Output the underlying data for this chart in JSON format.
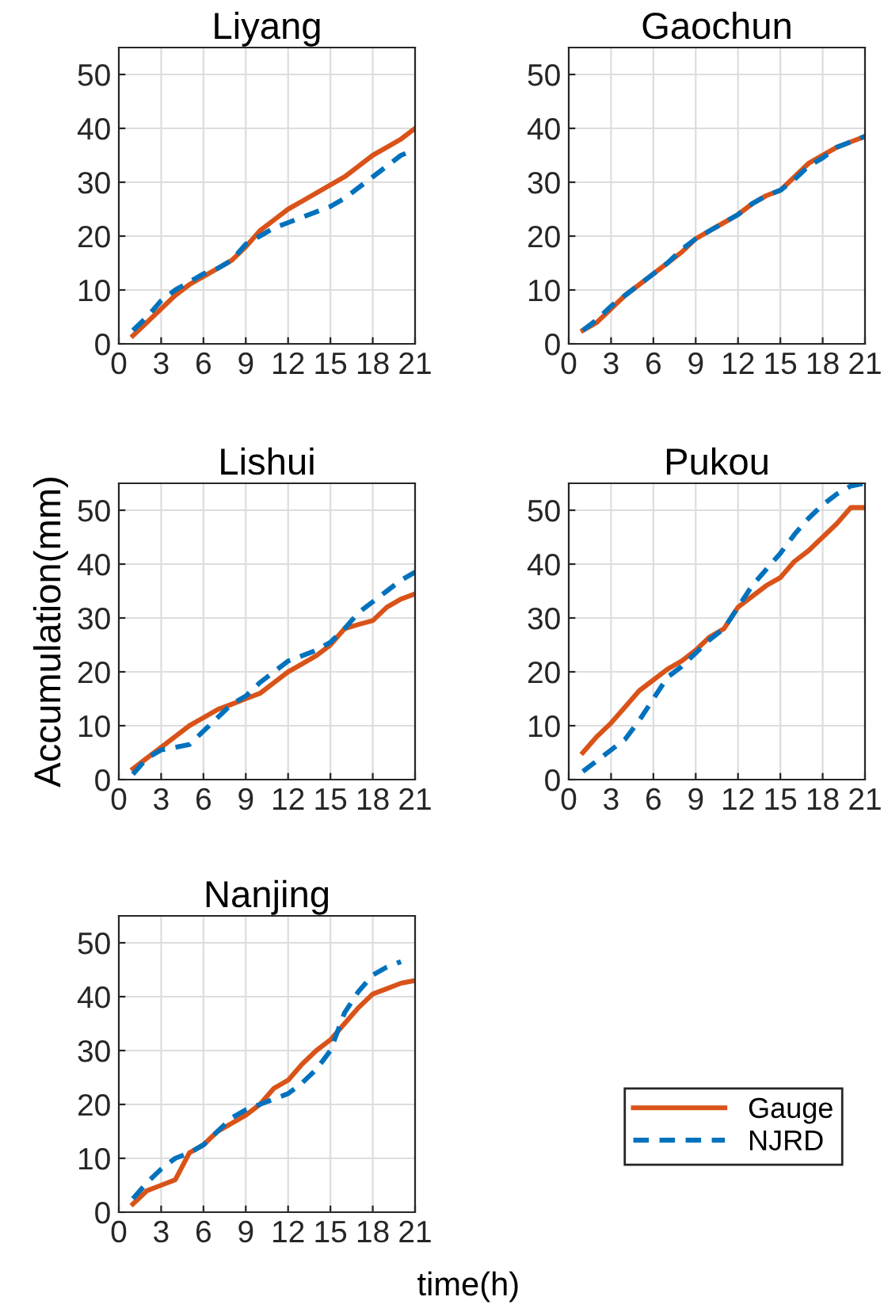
{
  "chart_data": [
    {
      "type": "line",
      "title": "Liyang",
      "legend": "bottom right",
      "x": [
        1,
        2,
        3,
        4,
        5,
        6,
        7,
        8,
        9,
        10,
        11,
        12,
        13,
        14,
        15,
        16,
        17,
        18,
        19,
        20,
        21
      ],
      "xlim": [
        0,
        21
      ],
      "ylim": [
        0,
        55
      ],
      "xticks": [
        0,
        3,
        6,
        9,
        12,
        15,
        18,
        21
      ],
      "yticks": [
        0,
        10,
        20,
        30,
        40,
        50
      ],
      "grid": true,
      "series": [
        {
          "name": "Gauge",
          "color": "#d95319",
          "line_style": "solid",
          "values": [
            1.5,
            4,
            6.5,
            9,
            11,
            12.5,
            14,
            15.5,
            18,
            21,
            23,
            25,
            26.5,
            28,
            29.5,
            31,
            33,
            35,
            36.5,
            38,
            40
          ]
        },
        {
          "name": "NJRD",
          "color": "#0072bd",
          "line_style": "dashed",
          "values": [
            2.5,
            5,
            8,
            10,
            11.5,
            13,
            14,
            15.5,
            18.5,
            20,
            21.5,
            22.5,
            23.5,
            24.5,
            25.5,
            27,
            29,
            31,
            33,
            35,
            36
          ]
        }
      ]
    },
    {
      "type": "line",
      "title": "Gaochun",
      "x": [
        1,
        2,
        3,
        4,
        5,
        6,
        7,
        8,
        9,
        10,
        11,
        12,
        13,
        14,
        15,
        16,
        17,
        18,
        19,
        20,
        21
      ],
      "xlim": [
        0,
        21
      ],
      "ylim": [
        0,
        55
      ],
      "xticks": [
        0,
        3,
        6,
        9,
        12,
        15,
        18,
        21
      ],
      "yticks": [
        0,
        10,
        20,
        30,
        40,
        50
      ],
      "grid": true,
      "series": [
        {
          "color": "#d95319",
          "line_style": "solid",
          "values": [
            2.5,
            4,
            6.5,
            9,
            11,
            13,
            15,
            17,
            19.5,
            21,
            22.5,
            24,
            26,
            27.5,
            28.5,
            31,
            33.5,
            35,
            36.5,
            37.5,
            38.5
          ]
        },
        {
          "color": "#0072bd",
          "line_style": "dashed",
          "values": [
            2.5,
            4.5,
            7,
            9,
            11,
            13,
            15,
            17.5,
            19.5,
            21,
            22.5,
            24,
            26,
            27.5,
            28.5,
            30.5,
            33,
            34.5,
            36.5,
            37.5,
            38.5
          ]
        }
      ]
    },
    {
      "type": "line",
      "title": "Lishui",
      "ylabel": "Accumulation(mm)",
      "x": [
        1,
        2,
        3,
        4,
        5,
        6,
        7,
        8,
        9,
        10,
        11,
        12,
        13,
        14,
        15,
        16,
        17,
        18,
        19,
        20,
        21
      ],
      "xlim": [
        0,
        21
      ],
      "ylim": [
        0,
        55
      ],
      "xticks": [
        0,
        3,
        6,
        9,
        12,
        15,
        18,
        21
      ],
      "yticks": [
        0,
        10,
        20,
        30,
        40,
        50
      ],
      "grid": true,
      "series": [
        {
          "color": "#d95319",
          "line_style": "solid",
          "values": [
            2,
            4,
            6,
            8,
            10,
            11.5,
            13,
            14,
            15,
            16,
            18,
            20,
            21.5,
            23,
            25,
            28,
            28.8,
            29.5,
            32,
            33.5,
            34.5
          ]
        },
        {
          "color": "#0072bd",
          "line_style": "dashed",
          "values": [
            1,
            4,
            5.5,
            6,
            6.5,
            9,
            11.5,
            14,
            15.5,
            18,
            20,
            22,
            23,
            24,
            25.5,
            28,
            31,
            33,
            35,
            37,
            38.5
          ]
        }
      ]
    },
    {
      "type": "line",
      "title": "Pukou",
      "x": [
        1,
        2,
        3,
        4,
        5,
        6,
        7,
        8,
        9,
        10,
        11,
        12,
        13,
        14,
        15,
        16,
        17,
        18,
        19,
        20,
        21
      ],
      "xlim": [
        0,
        21
      ],
      "ylim": [
        0,
        55
      ],
      "xticks": [
        0,
        3,
        6,
        9,
        12,
        15,
        18,
        21
      ],
      "yticks": [
        0,
        10,
        20,
        30,
        40,
        50
      ],
      "grid": true,
      "series": [
        {
          "color": "#d95319",
          "line_style": "solid",
          "values": [
            5,
            8,
            10.5,
            13.5,
            16.5,
            18.5,
            20.5,
            22,
            24,
            26.5,
            28,
            32,
            34,
            36,
            37.5,
            40.5,
            42.5,
            45,
            47.5,
            50.5,
            50.5
          ]
        },
        {
          "color": "#0072bd",
          "line_style": "dashed",
          "values": [
            1.5,
            3.5,
            5.5,
            7.5,
            11,
            15,
            19,
            21,
            23.5,
            26,
            28,
            32,
            36,
            39,
            42,
            45.5,
            48.5,
            51,
            53,
            54.5,
            55
          ]
        }
      ]
    },
    {
      "type": "line",
      "title": "Nanjing",
      "xlabel": "time(h)",
      "x": [
        1,
        2,
        3,
        4,
        5,
        6,
        7,
        8,
        9,
        10,
        11,
        12,
        13,
        14,
        15,
        16,
        17,
        18,
        19,
        20,
        21
      ],
      "xlim": [
        0,
        21
      ],
      "ylim": [
        0,
        55
      ],
      "xticks": [
        0,
        3,
        6,
        9,
        12,
        15,
        18,
        21
      ],
      "yticks": [
        0,
        10,
        20,
        30,
        40,
        50
      ],
      "grid": true,
      "series": [
        {
          "color": "#d95319",
          "line_style": "solid",
          "values": [
            1.5,
            4,
            5,
            6,
            11,
            12.5,
            15,
            16.5,
            18,
            20,
            23,
            24.5,
            27.5,
            30,
            32,
            35,
            38,
            40.5,
            41.5,
            42.5,
            43
          ]
        },
        {
          "color": "#0072bd",
          "line_style": "dashed",
          "values": [
            2.5,
            5.5,
            8,
            10,
            11,
            12.5,
            15,
            17.5,
            19,
            20,
            21,
            22,
            24,
            26.5,
            30,
            37,
            41,
            44,
            45.5,
            46.5,
            null
          ]
        }
      ]
    }
  ]
}
